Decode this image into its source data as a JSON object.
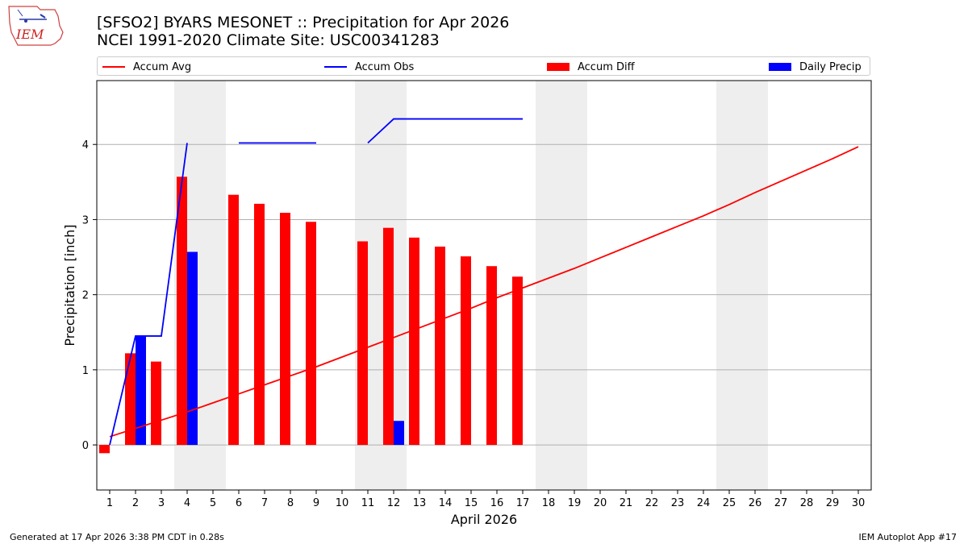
{
  "header": {
    "title_line1": "[SFSO2] BYARS MESONET :: Precipitation for Apr 2026",
    "title_line2": "NCEI 1991-2020 Climate Site: USC00341283"
  },
  "logo": {
    "text": "IEM"
  },
  "footer": {
    "left": "Generated at 17 Apr 2026 3:38 PM CDT in 0.28s",
    "right": "IEM Autoplot App #17"
  },
  "colors": {
    "accum_avg": "#ff0000",
    "accum_obs": "#0000ff",
    "accum_diff": "#ff0000",
    "daily_precip": "#0000ff",
    "weekend_shade": "#eeeeee",
    "grid": "#b0b0b0"
  },
  "chart_data": {
    "type": "bar",
    "xlabel": "April 2026",
    "ylabel": "Precipitation [inch]",
    "xlim": [
      0.5,
      30.5
    ],
    "ylim": [
      -0.6,
      4.85
    ],
    "x_ticks": [
      1,
      2,
      3,
      4,
      5,
      6,
      7,
      8,
      9,
      10,
      11,
      12,
      13,
      14,
      15,
      16,
      17,
      18,
      19,
      20,
      21,
      22,
      23,
      24,
      25,
      26,
      27,
      28,
      29,
      30
    ],
    "y_ticks": [
      0,
      1,
      2,
      3,
      4
    ],
    "grid": "y",
    "legend": [
      "Accum Avg",
      "Accum Obs",
      "Accum Diff",
      "Daily Precip"
    ],
    "legend_position": "top",
    "weekend_spans": [
      [
        3.5,
        5.5
      ],
      [
        10.5,
        12.5
      ],
      [
        17.5,
        19.5
      ],
      [
        24.5,
        26.5
      ]
    ],
    "series": [
      {
        "name": "Accum Avg",
        "kind": "line",
        "x": [
          1,
          2,
          3,
          4,
          5,
          6,
          7,
          8,
          9,
          10,
          11,
          12,
          13,
          14,
          15,
          16,
          17,
          18,
          19,
          20,
          21,
          22,
          23,
          24,
          25,
          26,
          27,
          28,
          29,
          30
        ],
        "values": [
          0.11,
          0.22,
          0.33,
          0.44,
          0.56,
          0.68,
          0.8,
          0.92,
          1.04,
          1.17,
          1.3,
          1.43,
          1.56,
          1.69,
          1.82,
          1.96,
          2.09,
          2.22,
          2.35,
          2.49,
          2.63,
          2.77,
          2.91,
          3.05,
          3.2,
          3.36,
          3.51,
          3.66,
          3.81,
          3.97
        ]
      },
      {
        "name": "Accum Obs",
        "kind": "line",
        "segments": [
          {
            "x": [
              1,
              2,
              3,
              4
            ],
            "values": [
              0.0,
              1.45,
              1.45,
              4.02
            ]
          },
          {
            "x": [
              6,
              7,
              8,
              9
            ],
            "values": [
              4.02,
              4.02,
              4.02,
              4.02
            ]
          },
          {
            "x": [
              11,
              12,
              13,
              14,
              15,
              16,
              17
            ],
            "values": [
              4.02,
              4.34,
              4.34,
              4.34,
              4.34,
              4.34,
              4.34
            ]
          }
        ]
      },
      {
        "name": "Accum Diff",
        "kind": "bar",
        "x": [
          1,
          2,
          3,
          4,
          6,
          7,
          8,
          9,
          11,
          12,
          13,
          14,
          15,
          16,
          17
        ],
        "values": [
          -0.11,
          1.22,
          1.11,
          3.57,
          3.33,
          3.21,
          3.09,
          2.97,
          2.71,
          2.89,
          2.76,
          2.64,
          2.51,
          2.38,
          2.24
        ]
      },
      {
        "name": "Daily Precip",
        "kind": "bar",
        "x": [
          2,
          4,
          12
        ],
        "values": [
          1.45,
          2.57,
          0.32
        ]
      }
    ]
  }
}
